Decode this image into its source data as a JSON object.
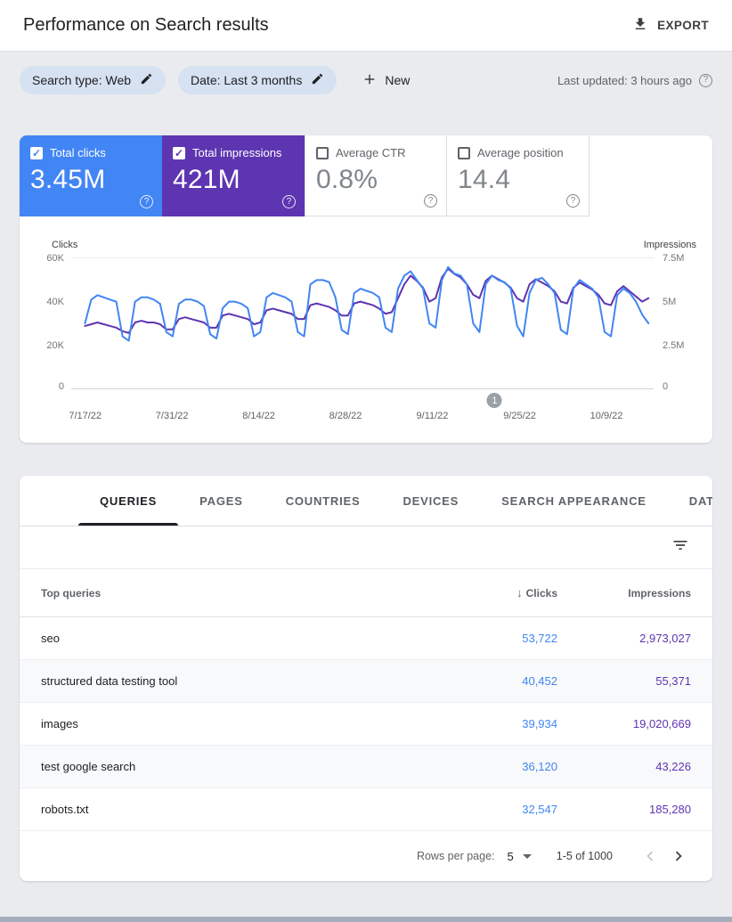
{
  "header": {
    "title": "Performance on Search results",
    "export_label": "EXPORT"
  },
  "filters": {
    "search_type_chip": "Search type: Web",
    "date_chip": "Date: Last 3 months",
    "new_button": "New",
    "last_updated": "Last updated: 3 hours ago",
    "help_glyph": "?"
  },
  "metrics": {
    "cards": [
      {
        "label": "Total clicks",
        "value": "3.45M",
        "selected": true,
        "color": "#4285f4"
      },
      {
        "label": "Total impressions",
        "value": "421M",
        "selected": true,
        "color": "#5e35b1"
      },
      {
        "label": "Average CTR",
        "value": "0.8%",
        "selected": false,
        "color": ""
      },
      {
        "label": "Average position",
        "value": "14.4",
        "selected": false,
        "color": ""
      }
    ],
    "check_glyph": "✓"
  },
  "chart_data": {
    "type": "line",
    "left_axis": {
      "label": "Clicks",
      "ticks": [
        "60K",
        "40K",
        "20K",
        "0"
      ],
      "max": 60,
      "unit": "K"
    },
    "right_axis": {
      "label": "Impressions",
      "ticks": [
        "7.5M",
        "5M",
        "2.5M",
        "0"
      ],
      "max": 7.5,
      "unit": "M"
    },
    "x_ticks": [
      "7/17/22",
      "7/31/22",
      "8/14/22",
      "8/28/22",
      "9/11/22",
      "9/25/22",
      "10/9/22"
    ],
    "annotation": {
      "label": "1"
    },
    "legend_position": "none",
    "grid": "top-bottom-only",
    "series": [
      {
        "name": "Clicks",
        "color": "#4285f4",
        "axis": "left",
        "values": [
          30,
          41,
          43,
          42,
          41,
          40,
          24,
          22,
          40,
          42,
          42,
          41,
          39,
          26,
          24,
          39,
          41,
          41,
          40,
          38,
          25,
          23,
          37,
          40,
          40,
          39,
          37,
          24,
          26,
          42,
          44,
          43,
          42,
          40,
          26,
          24,
          48,
          50,
          50,
          49,
          42,
          27,
          25,
          44,
          46,
          45,
          44,
          42,
          28,
          26,
          46,
          52,
          54,
          50,
          46,
          30,
          28,
          50,
          56,
          53,
          52,
          48,
          30,
          26,
          48,
          52,
          50,
          49,
          46,
          29,
          24,
          44,
          50,
          51,
          48,
          44,
          27,
          25,
          46,
          50,
          48,
          46,
          42,
          26,
          24,
          43,
          46,
          44,
          40,
          34,
          30
        ]
      },
      {
        "name": "Impressions",
        "color": "#5e35b1",
        "axis": "right",
        "values": [
          3.6,
          3.7,
          3.8,
          3.7,
          3.6,
          3.5,
          3.3,
          3.2,
          3.8,
          3.9,
          3.8,
          3.8,
          3.7,
          3.4,
          3.4,
          4.0,
          4.1,
          4.0,
          3.9,
          3.8,
          3.5,
          3.5,
          4.2,
          4.3,
          4.2,
          4.1,
          4.0,
          3.7,
          3.8,
          4.5,
          4.6,
          4.5,
          4.4,
          4.3,
          4.0,
          4.0,
          4.8,
          4.9,
          4.8,
          4.7,
          4.5,
          4.2,
          4.2,
          4.9,
          5.0,
          4.9,
          4.8,
          4.6,
          4.3,
          4.4,
          5.2,
          6.0,
          6.5,
          6.2,
          5.8,
          5.0,
          5.2,
          6.4,
          6.9,
          6.6,
          6.4,
          6.0,
          5.4,
          5.2,
          6.2,
          6.5,
          6.3,
          6.1,
          5.8,
          5.2,
          5.0,
          6.0,
          6.3,
          6.1,
          5.9,
          5.6,
          5.0,
          4.9,
          5.8,
          6.1,
          5.9,
          5.7,
          5.4,
          4.9,
          4.8,
          5.6,
          5.9,
          5.6,
          5.3,
          5.0,
          5.2
        ]
      }
    ]
  },
  "tabs": {
    "items": [
      "QUERIES",
      "PAGES",
      "COUNTRIES",
      "DEVICES",
      "SEARCH APPEARANCE",
      "DATES"
    ],
    "active": "QUERIES"
  },
  "table": {
    "columns": {
      "first": "Top queries",
      "clicks": "Clicks",
      "impressions": "Impressions"
    },
    "sort_glyph": "↓",
    "rows": [
      {
        "query": "seo",
        "clicks": "53,722",
        "impressions": "2,973,027"
      },
      {
        "query": "structured data testing tool",
        "clicks": "40,452",
        "impressions": "55,371"
      },
      {
        "query": "images",
        "clicks": "39,934",
        "impressions": "19,020,669"
      },
      {
        "query": "test google search",
        "clicks": "36,120",
        "impressions": "43,226"
      },
      {
        "query": "robots.txt",
        "clicks": "32,547",
        "impressions": "185,280"
      }
    ]
  },
  "pagination": {
    "rows_per_page_label": "Rows per page:",
    "rows_per_page": "5",
    "range": "1-5 of 1000"
  }
}
